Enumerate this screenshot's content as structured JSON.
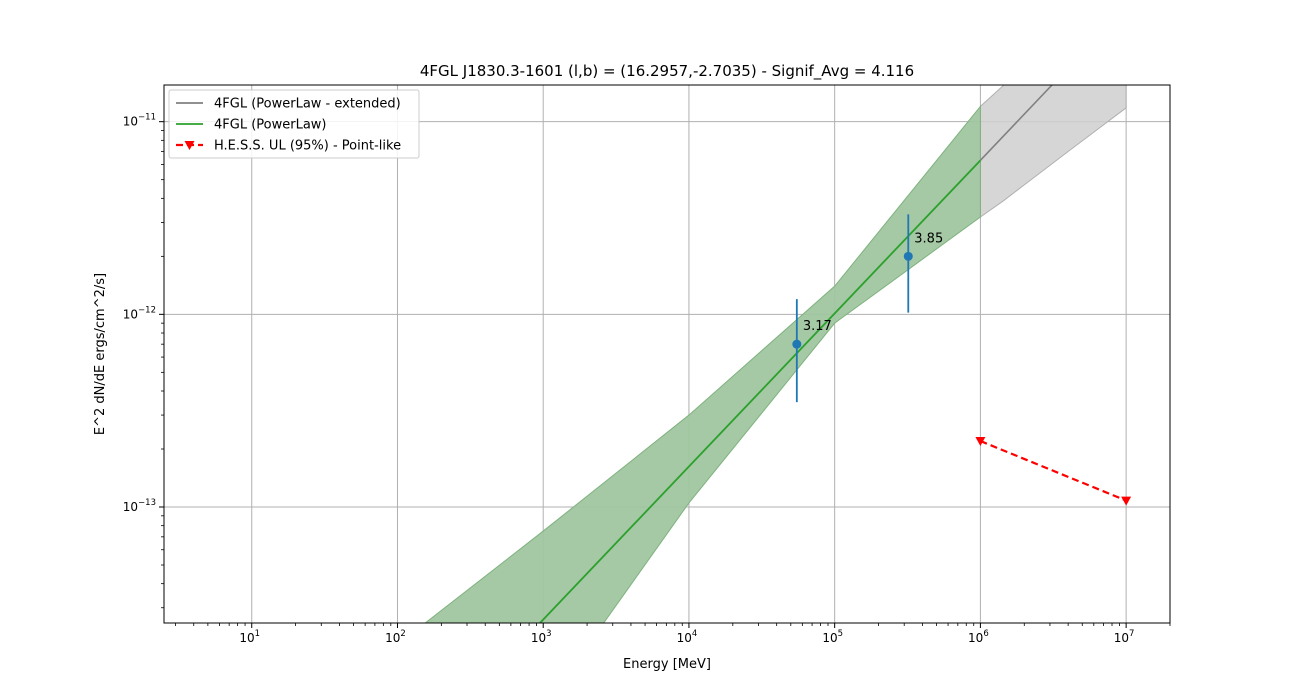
{
  "chart_data": {
    "type": "line",
    "title": "4FGL J1830.3-1601  (l,b) = (16.2957,-2.7035) - Signif_Avg = 4.116",
    "xlabel": "Energy [MeV]",
    "ylabel": "E^2 dN/dE ergs/cm^2/s]",
    "xscale": "log",
    "yscale": "log",
    "xlim": [
      2.5,
      20000000
    ],
    "ylim": [
      2.5e-14,
      1.55e-11
    ],
    "grid": true,
    "legend_position": "top-left",
    "x_ticks": [
      {
        "base": "10",
        "exp": "1",
        "value": 10
      },
      {
        "base": "10",
        "exp": "2",
        "value": 100
      },
      {
        "base": "10",
        "exp": "3",
        "value": 1000
      },
      {
        "base": "10",
        "exp": "4",
        "value": 10000
      },
      {
        "base": "10",
        "exp": "5",
        "value": 100000
      },
      {
        "base": "10",
        "exp": "6",
        "value": 1000000
      },
      {
        "base": "10",
        "exp": "7",
        "value": 10000000
      }
    ],
    "y_ticks": [
      {
        "base": "10",
        "exp": "−13",
        "value": 1e-13
      },
      {
        "base": "10",
        "exp": "−12",
        "value": 1e-12
      },
      {
        "base": "10",
        "exp": "−11",
        "value": 1e-11
      }
    ],
    "series": [
      {
        "name": "4FGL (PowerLaw - extended)",
        "color": "#808080",
        "kind": "line",
        "x": [
          1000000,
          3100000
        ],
        "y": [
          6.3e-12,
          1.55e-11
        ],
        "band": {
          "color": "#cfcfcf",
          "edge_color": "#b0b0b0",
          "x": [
            1000000,
            1450000,
            2000000,
            4000000,
            10000000
          ],
          "upper": [
            1.2e-11,
            1.55e-11,
            1.55e-11,
            1.55e-11,
            1.55e-11
          ],
          "lower": [
            3.2e-12,
            3.9e-12,
            4.7e-12,
            7e-12,
            1.18e-11
          ]
        }
      },
      {
        "name": "4FGL (PowerLaw)",
        "color": "#2ca02c",
        "kind": "line",
        "x": [
          950,
          1000000
        ],
        "y": [
          2.5e-14,
          6.3e-12
        ],
        "band": {
          "color": "#9fc69f",
          "edge_color": "#7fb27f",
          "upper_x": [
            155,
            1000,
            10000,
            100000,
            1000000
          ],
          "upper_y": [
            2.5e-14,
            7.5e-14,
            3e-13,
            1.4e-12,
            1.2e-11
          ],
          "lower_x": [
            2600,
            10000,
            100000,
            1000000
          ],
          "lower_y": [
            2.5e-14,
            1.05e-13,
            9e-13,
            3.2e-12
          ]
        }
      },
      {
        "name": "H.E.S.S. UL (95%) - Point-like",
        "color": "#ff0000",
        "kind": "upper_limit",
        "x": [
          1000000,
          10000000
        ],
        "y": [
          2.2e-13,
          1.08e-13
        ]
      }
    ],
    "points": [
      {
        "x": 55000,
        "y": 7e-13,
        "yerr_low": 3.5e-13,
        "yerr_high": 1.2e-12,
        "label": "3.17"
      },
      {
        "x": 320000,
        "y": 2e-12,
        "yerr_low": 1.02e-12,
        "yerr_high": 3.3e-12,
        "label": "3.85"
      }
    ],
    "points_color": "#1f77b4"
  }
}
